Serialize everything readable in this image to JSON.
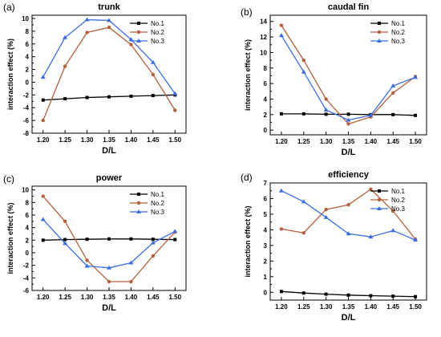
{
  "chart_data": [
    {
      "type": "line",
      "panel_label": "(a)",
      "title": "trunk",
      "xlabel": "D/L",
      "ylabel": "interaction effect (%)",
      "x": [
        1.2,
        1.25,
        1.3,
        1.35,
        1.4,
        1.45,
        1.5
      ],
      "xticks": [
        "1.20",
        "1.25",
        "1.30",
        "1.35",
        "1.40",
        "1.45",
        "1.50"
      ],
      "xlim": [
        1.175,
        1.525
      ],
      "ylim": [
        -8,
        10.5
      ],
      "yticks": [
        -8,
        -6,
        -4,
        -2,
        0,
        2,
        4,
        6,
        8,
        10
      ],
      "legend_position": "top-right",
      "series": [
        {
          "name": "No.1",
          "color": "#000000",
          "marker": "square",
          "values": [
            -2.8,
            -2.6,
            -2.4,
            -2.3,
            -2.2,
            -2.1,
            -2.0
          ]
        },
        {
          "name": "No.2",
          "color": "#b5603a",
          "marker": "circle",
          "values": [
            -6.0,
            2.5,
            7.8,
            8.6,
            5.9,
            1.2,
            -4.4
          ]
        },
        {
          "name": "No.3",
          "color": "#3a6ee8",
          "marker": "triangle",
          "values": [
            0.8,
            7.0,
            9.8,
            9.7,
            6.7,
            3.1,
            -1.8
          ]
        }
      ]
    },
    {
      "type": "line",
      "panel_label": "(b)",
      "title": "caudal fin",
      "xlabel": "D/L",
      "ylabel": "interaction effect (%)",
      "x": [
        1.2,
        1.25,
        1.3,
        1.35,
        1.4,
        1.45,
        1.5
      ],
      "xticks": [
        "1.20",
        "1.25",
        "1.30",
        "1.35",
        "1.40",
        "1.45",
        "1.50"
      ],
      "xlim": [
        1.175,
        1.525
      ],
      "ylim": [
        -0.6,
        14.8
      ],
      "yticks": [
        0,
        2,
        4,
        6,
        8,
        10,
        12,
        14
      ],
      "legend_position": "top-right",
      "series": [
        {
          "name": "No.1",
          "color": "#000000",
          "marker": "square",
          "values": [
            2.1,
            2.1,
            2.05,
            2.05,
            2.0,
            2.0,
            1.9
          ]
        },
        {
          "name": "No.2",
          "color": "#b5603a",
          "marker": "circle",
          "values": [
            13.5,
            9.0,
            4.0,
            0.8,
            1.7,
            4.8,
            6.9
          ]
        },
        {
          "name": "No.3",
          "color": "#3a6ee8",
          "marker": "triangle",
          "values": [
            12.2,
            7.5,
            2.6,
            1.3,
            1.9,
            5.7,
            6.8
          ]
        }
      ]
    },
    {
      "type": "line",
      "panel_label": "(c)",
      "title": "power",
      "xlabel": "D/L",
      "ylabel": "interaction effect (%)",
      "x": [
        1.2,
        1.25,
        1.3,
        1.35,
        1.4,
        1.45,
        1.5
      ],
      "xticks": [
        "1.20",
        "1.25",
        "1.30",
        "1.35",
        "1.40",
        "1.45",
        "1.50"
      ],
      "xlim": [
        1.175,
        1.525
      ],
      "ylim": [
        -6,
        10.6
      ],
      "yticks": [
        -6,
        -4,
        -2,
        0,
        2,
        4,
        6,
        8,
        10
      ],
      "legend_position": "top-right",
      "series": [
        {
          "name": "No.1",
          "color": "#000000",
          "marker": "square",
          "values": [
            2.0,
            2.1,
            2.15,
            2.2,
            2.2,
            2.15,
            2.1
          ]
        },
        {
          "name": "No.2",
          "color": "#b5603a",
          "marker": "circle",
          "values": [
            9.0,
            5.0,
            -1.2,
            -4.6,
            -4.6,
            -0.5,
            3.3
          ]
        },
        {
          "name": "No.3",
          "color": "#3a6ee8",
          "marker": "triangle",
          "values": [
            5.3,
            1.5,
            -2.1,
            -2.4,
            -1.6,
            1.6,
            3.4
          ]
        }
      ]
    },
    {
      "type": "line",
      "panel_label": "(d)",
      "title": "efficiency",
      "xlabel": "D/L",
      "ylabel": "interaction effect (%)",
      "x": [
        1.2,
        1.25,
        1.3,
        1.35,
        1.4,
        1.45,
        1.5
      ],
      "xticks": [
        "1.20",
        "1.25",
        "1.30",
        "1.35",
        "1.40",
        "1.45",
        "1.50"
      ],
      "xlim": [
        1.175,
        1.525
      ],
      "ylim": [
        -0.5,
        7.0
      ],
      "yticks": [
        0,
        1,
        2,
        3,
        4,
        5,
        6,
        7
      ],
      "legend_position": "top-right",
      "series": [
        {
          "name": "No.1",
          "color": "#000000",
          "marker": "square",
          "values": [
            0.05,
            -0.05,
            -0.12,
            -0.18,
            -0.22,
            -0.25,
            -0.28
          ]
        },
        {
          "name": "No.2",
          "color": "#b5603a",
          "marker": "circle",
          "values": [
            4.05,
            3.8,
            5.3,
            5.6,
            6.6,
            5.2,
            3.4
          ]
        },
        {
          "name": "No.3",
          "color": "#3a6ee8",
          "marker": "triangle",
          "values": [
            6.5,
            5.8,
            4.8,
            3.75,
            3.55,
            3.95,
            3.35
          ]
        }
      ]
    }
  ]
}
